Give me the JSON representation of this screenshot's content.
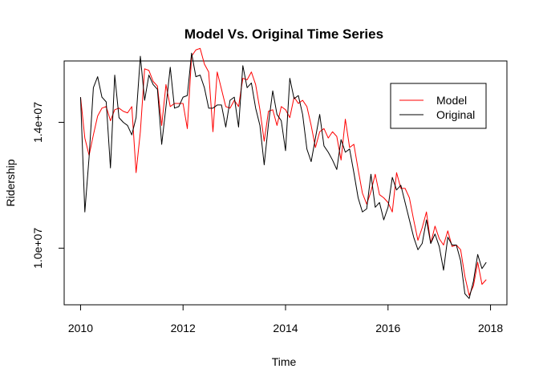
{
  "chart_data": {
    "type": "line",
    "title": "Model Vs. Original Time Series",
    "xlabel": "Time",
    "ylabel": "Ridership",
    "xlim": [
      2009.68,
      2018.32
    ],
    "ylim": [
      8200000,
      15950000
    ],
    "x_ticks": [
      2010,
      2012,
      2014,
      2016,
      2018
    ],
    "x_tick_labels": [
      "2010",
      "2012",
      "2014",
      "2016",
      "2018"
    ],
    "y_ticks": [
      10000000,
      14000000
    ],
    "y_tick_labels": [
      "1.0e+07",
      "1.4e+07"
    ],
    "x_start": 2010,
    "x_step": 0.08333333,
    "legend": {
      "position": "top-right"
    },
    "series": [
      {
        "name": "Model",
        "color": "#ff0000",
        "values": [
          14800000,
          13500000,
          12950000,
          13600000,
          14200000,
          14450000,
          14500000,
          14050000,
          14400000,
          14450000,
          14350000,
          14300000,
          14500000,
          12400000,
          13700000,
          15700000,
          15650000,
          15300000,
          15150000,
          13900000,
          15200000,
          14500000,
          14600000,
          14600000,
          14600000,
          13800000,
          16100000,
          16300000,
          16350000,
          15850000,
          15600000,
          13700000,
          15600000,
          15050000,
          14500000,
          14450000,
          14700000,
          14500000,
          15400000,
          15350000,
          15600000,
          15200000,
          14400000,
          13400000,
          14350000,
          14400000,
          13900000,
          14500000,
          14400000,
          14150000,
          14800000,
          14600000,
          14700000,
          14500000,
          13900000,
          13200000,
          13700000,
          13800000,
          13500000,
          13700000,
          13550000,
          12800000,
          14100000,
          13200000,
          13300000,
          12500000,
          11750000,
          11400000,
          11800000,
          12350000,
          11700000,
          11600000,
          11450000,
          11150000,
          12400000,
          11900000,
          11900000,
          11600000,
          10900000,
          10250000,
          10650000,
          11150000,
          10150000,
          10700000,
          10300000,
          10100000,
          10550000,
          10050000,
          10100000,
          9950000,
          9100000,
          8500000,
          8800000,
          9550000,
          8850000,
          9000000
        ]
      },
      {
        "name": "Original",
        "color": "#000000",
        "values": [
          14800000,
          11150000,
          12900000,
          15100000,
          15450000,
          14800000,
          14650000,
          12550000,
          15500000,
          14150000,
          14000000,
          13900000,
          13600000,
          14150000,
          16100000,
          14700000,
          15500000,
          15200000,
          15050000,
          13300000,
          14500000,
          15750000,
          14450000,
          14500000,
          14800000,
          14850000,
          16200000,
          15450000,
          15500000,
          15100000,
          14450000,
          14450000,
          14550000,
          14550000,
          13850000,
          14700000,
          14800000,
          13850000,
          15800000,
          15100000,
          15250000,
          14450000,
          13900000,
          12650000,
          13950000,
          15000000,
          14250000,
          14050000,
          13100000,
          15400000,
          14750000,
          14850000,
          14250000,
          13150000,
          12750000,
          13500000,
          14250000,
          13250000,
          13050000,
          12800000,
          12500000,
          13450000,
          13050000,
          13150000,
          12400000,
          11600000,
          11150000,
          11250000,
          12350000,
          11300000,
          11450000,
          10900000,
          11300000,
          12250000,
          11850000,
          12000000,
          11450000,
          10900000,
          10350000,
          9950000,
          10150000,
          10900000,
          10150000,
          10450000,
          10050000,
          9300000,
          10350000,
          10100000,
          10100000,
          9600000,
          8550000,
          8400000,
          8950000,
          9800000,
          9350000,
          9550000
        ]
      }
    ]
  }
}
